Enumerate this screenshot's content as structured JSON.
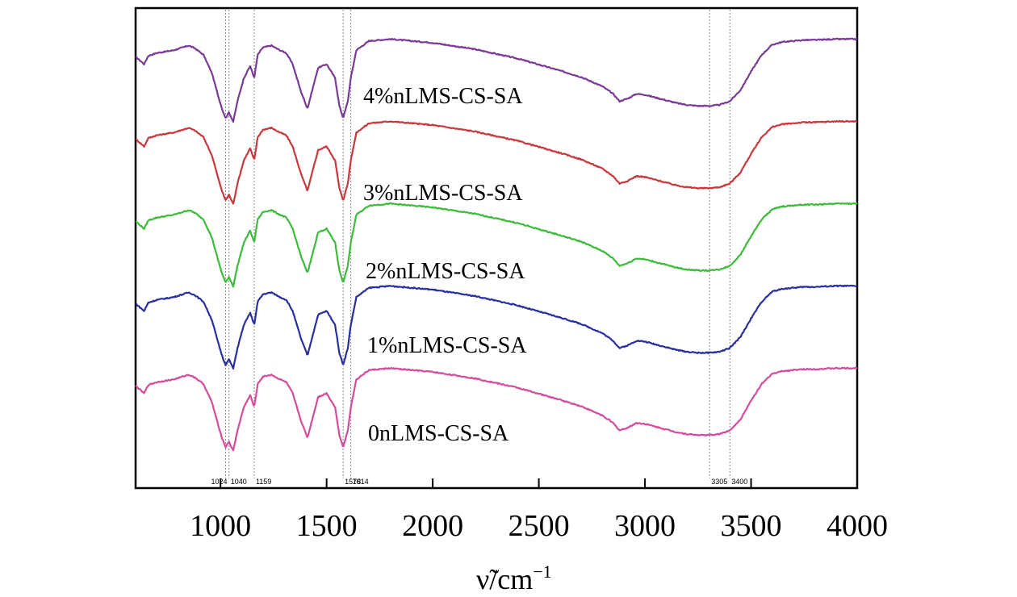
{
  "chart_data": {
    "type": "line",
    "title": "",
    "xlabel": "ν̃/cm",
    "xlabel_superscript": "−1",
    "ylabel": "",
    "xlim": [
      600,
      4000
    ],
    "grid": false,
    "x_ticks": [
      1000,
      1500,
      2000,
      2500,
      3000,
      3500,
      4000
    ],
    "x_tick_labels": [
      "1000",
      "1500",
      "2000",
      "2500",
      "3000",
      "3500",
      "4000"
    ],
    "reference_lines": [
      {
        "x": 1024,
        "label": "1024"
      },
      {
        "x": 1040,
        "label": "1040"
      },
      {
        "x": 1159,
        "label": "1159"
      },
      {
        "x": 1578,
        "label": "1578"
      },
      {
        "x": 1614,
        "label": "1614"
      },
      {
        "x": 3305,
        "label": "3305"
      },
      {
        "x": 3400,
        "label": "3400"
      }
    ],
    "series": [
      {
        "name": "4%nLMS-CS-SA",
        "color": "#7a3b96",
        "offset": 0
      },
      {
        "name": "3%nLMS-CS-SA",
        "color": "#c8383c",
        "offset": 1
      },
      {
        "name": "2%nLMS-CS-SA",
        "color": "#3dbb3b",
        "offset": 2
      },
      {
        "name": "1%nLMS-CS-SA",
        "color": "#2a2fa0",
        "offset": 3
      },
      {
        "name": "0nLMS-CS-SA",
        "color": "#d44c9c",
        "offset": 4
      }
    ],
    "profile_x": [
      600,
      640,
      660,
      700,
      780,
      850,
      880,
      920,
      960,
      990,
      1010,
      1024,
      1040,
      1060,
      1080,
      1110,
      1140,
      1159,
      1175,
      1200,
      1240,
      1280,
      1310,
      1340,
      1380,
      1410,
      1430,
      1460,
      1500,
      1540,
      1560,
      1578,
      1600,
      1614,
      1640,
      1700,
      1800,
      2000,
      2200,
      2400,
      2600,
      2700,
      2800,
      2850,
      2880,
      2920,
      2960,
      3000,
      3050,
      3100,
      3150,
      3200,
      3250,
      3305,
      3350,
      3400,
      3450,
      3500,
      3550,
      3600,
      3650,
      3700,
      3750,
      3800,
      3900,
      4000
    ],
    "profile_t": [
      0.78,
      0.7,
      0.79,
      0.82,
      0.85,
      0.9,
      0.87,
      0.8,
      0.6,
      0.35,
      0.2,
      0.12,
      0.18,
      0.08,
      0.3,
      0.55,
      0.68,
      0.55,
      0.8,
      0.88,
      0.9,
      0.85,
      0.82,
      0.7,
      0.4,
      0.22,
      0.4,
      0.66,
      0.7,
      0.55,
      0.25,
      0.12,
      0.3,
      0.55,
      0.85,
      0.95,
      0.97,
      0.93,
      0.86,
      0.76,
      0.63,
      0.56,
      0.46,
      0.38,
      0.3,
      0.33,
      0.38,
      0.37,
      0.34,
      0.31,
      0.28,
      0.26,
      0.25,
      0.25,
      0.26,
      0.3,
      0.42,
      0.62,
      0.8,
      0.91,
      0.94,
      0.95,
      0.96,
      0.96,
      0.97,
      0.97
    ]
  }
}
